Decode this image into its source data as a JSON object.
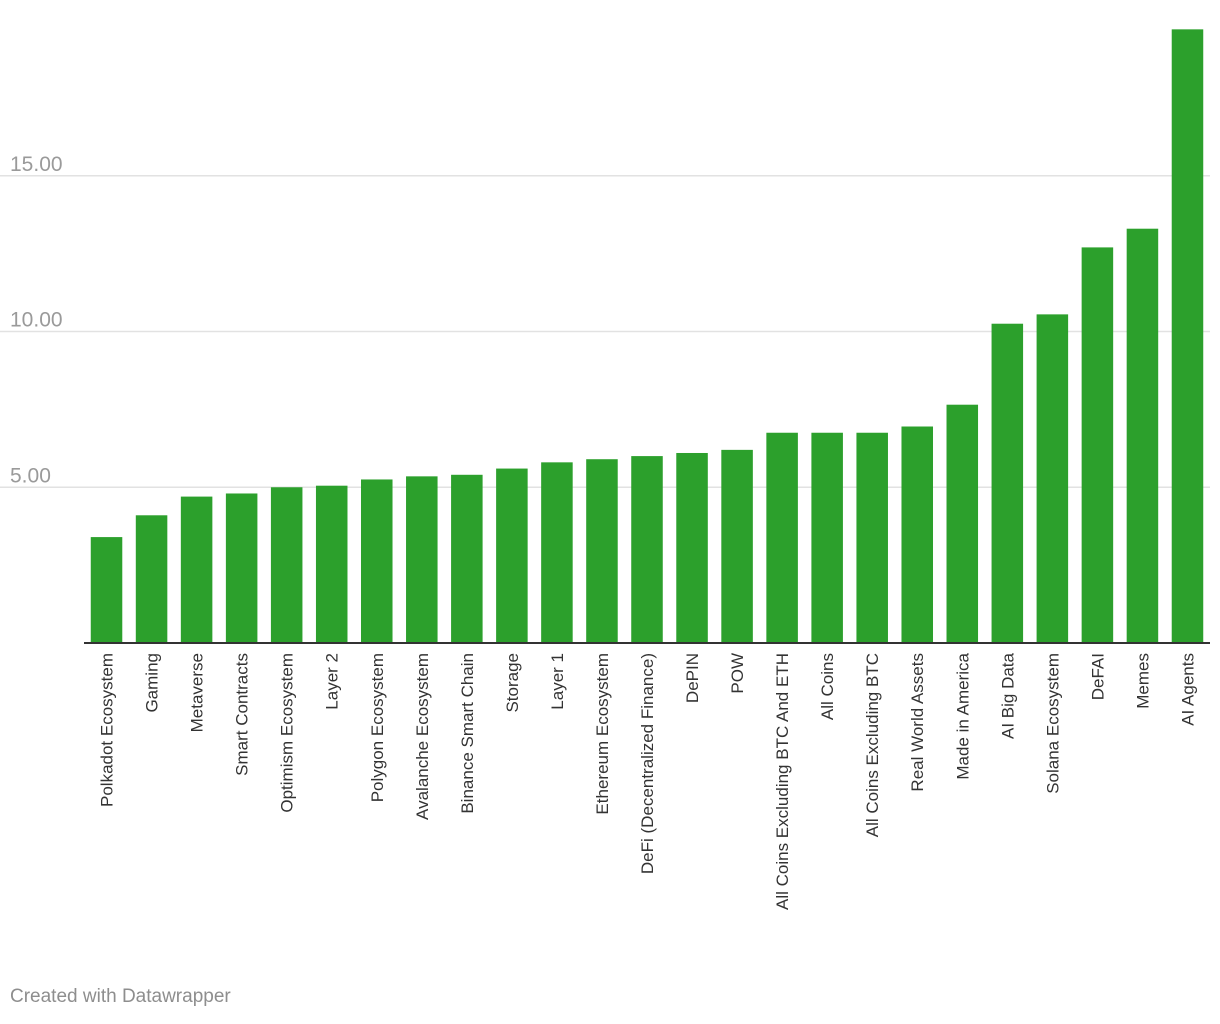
{
  "chart_data": {
    "type": "bar",
    "title": "",
    "xlabel": "",
    "ylabel": "",
    "categories": [
      "Polkadot Ecosystem",
      "Gaming",
      "Metaverse",
      "Smart Contracts",
      "Optimism Ecosystem",
      "Layer 2",
      "Polygon Ecosystem",
      "Avalanche Ecosystem",
      "Binance Smart Chain",
      "Storage",
      "Layer 1",
      "Ethereum Ecosystem",
      "DeFi (Decentralized Finance)",
      "DePIN",
      "POW",
      "All Coins Excluding BTC And ETH",
      "All Coins",
      "All Coins Excluding BTC",
      "Real World Assets",
      "Made in America",
      "AI Big Data",
      "Solana Ecosystem",
      "DeFAI",
      "Memes",
      "AI Agents"
    ],
    "values": [
      3.4,
      4.1,
      4.7,
      4.8,
      5.0,
      5.05,
      5.25,
      5.35,
      5.4,
      5.6,
      5.8,
      5.9,
      6.0,
      6.1,
      6.2,
      6.75,
      6.75,
      6.75,
      6.95,
      7.65,
      10.25,
      10.55,
      12.7,
      13.3,
      19.7
    ],
    "ylim": [
      0,
      20
    ],
    "yticks": [
      5,
      10,
      15
    ],
    "ytick_labels": [
      "5.00",
      "10.00",
      "15.00"
    ],
    "grid": true,
    "bar_color": "#2ca02c",
    "gridline_color": "#e2e2e2",
    "baseline_color": "#333333"
  },
  "footer": {
    "credit": "Created with Datawrapper"
  }
}
